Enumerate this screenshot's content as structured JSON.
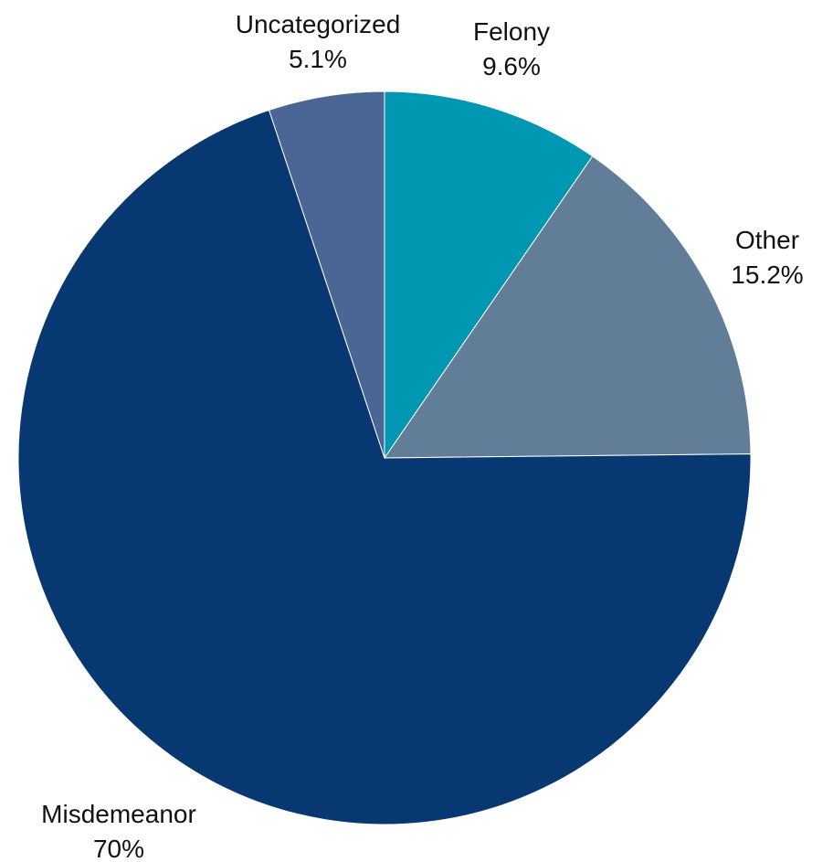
{
  "chart_data": {
    "type": "pie",
    "start_angle_degrees": 0,
    "direction": "clockwise",
    "slices": [
      {
        "label": "Felony",
        "value": 9.6,
        "value_label": "9.6%",
        "color": "#0097B2"
      },
      {
        "label": "Other",
        "value": 15.2,
        "value_label": "15.2%",
        "color": "#627D98"
      },
      {
        "label": "Misdemeanor",
        "value": 70,
        "value_label": "70%",
        "color": "#083872"
      },
      {
        "label": "Uncategorized",
        "value": 5.1,
        "value_label": "5.1%",
        "color": "#4A6694"
      }
    ]
  }
}
